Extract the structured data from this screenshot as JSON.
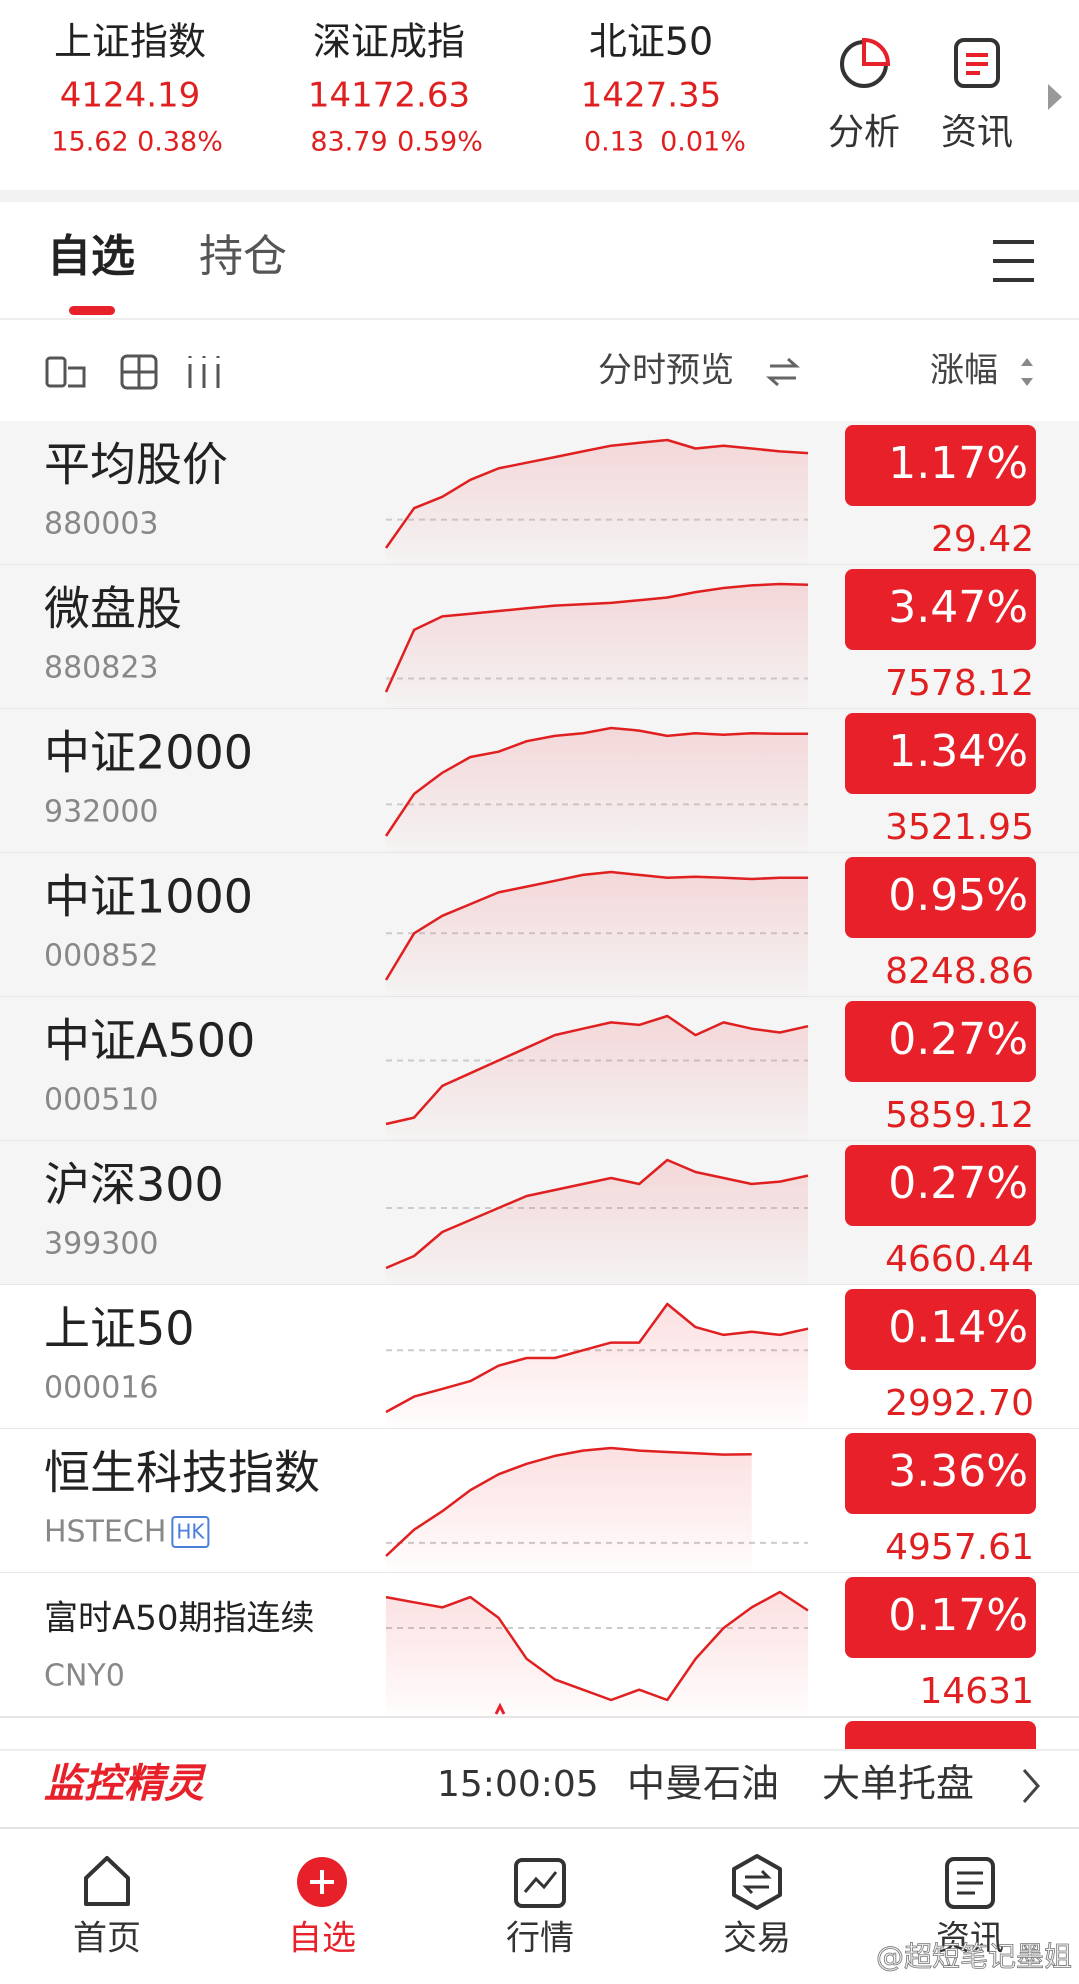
{
  "market_indices": [
    {
      "name": "上证指数",
      "value": "4124.19",
      "change": "15.62",
      "change_pct": "0.38%"
    },
    {
      "name": "深证成指",
      "value": "14172.63",
      "change": "83.79",
      "change_pct": "0.59%"
    },
    {
      "name": "北证50",
      "value": "1427.35",
      "change": "0.13",
      "change_pct": "0.01%"
    }
  ],
  "header_actions": [
    "分析",
    "资讯"
  ],
  "tabs": [
    "自选",
    "持仓"
  ],
  "toolbar": {
    "preview": "分时预览",
    "sort": "涨幅"
  },
  "watchlist": [
    {
      "name": "平均股价",
      "code": "880003",
      "change_pct": "1.17%",
      "price": "29.42",
      "sparkline": [
        -0.5,
        0.2,
        0.4,
        0.7,
        0.9,
        1.0,
        1.1,
        1.2,
        1.3,
        1.35,
        1.4,
        1.25,
        1.3,
        1.25,
        1.2,
        1.17
      ]
    },
    {
      "name": "微盘股",
      "code": "880823",
      "change_pct": "3.47%",
      "price": "7578.12",
      "sparkline": [
        -0.5,
        1.8,
        2.3,
        2.4,
        2.5,
        2.6,
        2.7,
        2.75,
        2.8,
        2.9,
        3.0,
        3.2,
        3.35,
        3.45,
        3.5,
        3.47
      ]
    },
    {
      "name": "中证2000",
      "code": "932000",
      "change_pct": "1.34%",
      "price": "3521.95",
      "sparkline": [
        -0.6,
        0.2,
        0.6,
        0.9,
        1.0,
        1.2,
        1.3,
        1.35,
        1.45,
        1.4,
        1.3,
        1.35,
        1.32,
        1.35,
        1.34,
        1.34
      ]
    },
    {
      "name": "中证1000",
      "code": "000852",
      "change_pct": "0.95%",
      "price": "8248.86",
      "sparkline": [
        -0.8,
        0.0,
        0.3,
        0.5,
        0.7,
        0.8,
        0.9,
        1.0,
        1.05,
        1.0,
        0.95,
        0.97,
        0.95,
        0.93,
        0.95,
        0.95
      ]
    },
    {
      "name": "中证A500",
      "code": "000510",
      "change_pct": "0.27%",
      "price": "5859.12",
      "sparkline": [
        -0.5,
        -0.45,
        -0.2,
        -0.1,
        0.0,
        0.1,
        0.2,
        0.25,
        0.3,
        0.28,
        0.35,
        0.2,
        0.3,
        0.25,
        0.22,
        0.27
      ]
    },
    {
      "name": "沪深300",
      "code": "399300",
      "change_pct": "0.27%",
      "price": "4660.44",
      "sparkline": [
        -0.5,
        -0.4,
        -0.2,
        -0.1,
        0.0,
        0.1,
        0.15,
        0.2,
        0.25,
        0.2,
        0.4,
        0.3,
        0.25,
        0.2,
        0.22,
        0.27
      ]
    },
    {
      "name": "上证50",
      "code": "000016",
      "change_pct": "0.14%",
      "price": "2992.70",
      "sparkline": [
        -0.4,
        -0.3,
        -0.25,
        -0.2,
        -0.1,
        -0.05,
        -0.05,
        0.0,
        0.05,
        0.05,
        0.3,
        0.15,
        0.1,
        0.12,
        0.1,
        0.14
      ]
    },
    {
      "name": "恒生科技指数",
      "code": "HSTECH",
      "badge": "HK",
      "change_pct": "3.36%",
      "price": "4957.61",
      "sparkline": [
        -0.5,
        0.5,
        1.2,
        2.0,
        2.6,
        3.0,
        3.3,
        3.5,
        3.6,
        3.5,
        3.45,
        3.4,
        3.35,
        3.36,
        null,
        null
      ]
    },
    {
      "name": "富时A50期指连续",
      "code": "CNY0",
      "change_pct": "0.17%",
      "price": "14631",
      "sparkline": [
        0.3,
        0.25,
        0.2,
        0.3,
        0.1,
        -0.3,
        -0.5,
        -0.6,
        -0.7,
        -0.6,
        -0.7,
        -0.3,
        0.0,
        0.2,
        0.35,
        0.17
      ]
    }
  ],
  "monitor": {
    "title": "监控精灵",
    "time": "15:00:05",
    "stock": "中曼石油",
    "event": "大单托盘"
  },
  "nav": [
    "首页",
    "自选",
    "行情",
    "交易",
    "资讯"
  ],
  "watermark": "@超短笔记墨姐"
}
